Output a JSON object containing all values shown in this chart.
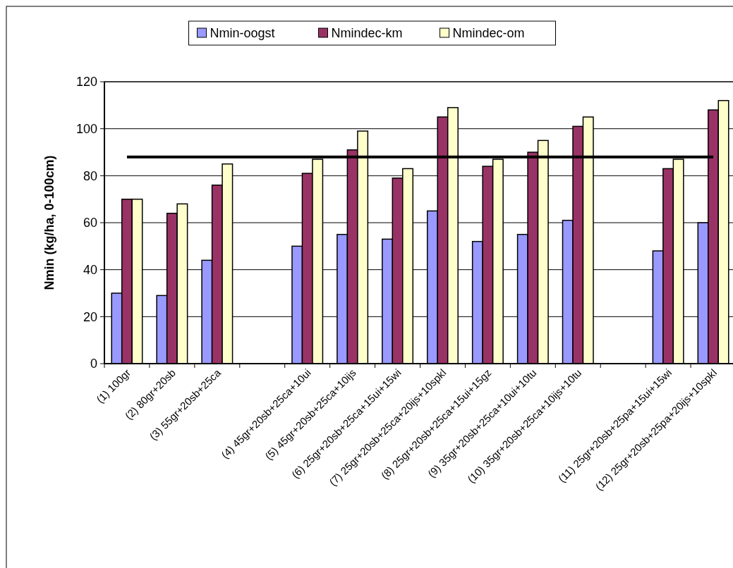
{
  "chart_data": {
    "type": "bar",
    "ylabel": "Nmin (kg/ha, 0-100cm)",
    "categories": [
      "(1) 100gr",
      "(2) 80gr+20sb",
      "(3) 55gr+20sb+25ca",
      null,
      "(4) 45gr+20sb+25ca+10ui",
      "(5) 45gr+20sb+25ca+10ijs",
      "(6) 25gr+20sb+25ca+15ui+15wi",
      "(7) 25gr+20sb+25ca+20ijs+10spkl",
      "(8) 25gr+20sb+25ca+15ui+15gz",
      "(9) 35gr+20sb+25ca+10ui+10tu",
      "(10) 35gr+20sb+25ca+10ijs+10tu",
      null,
      "(11) 25gr+20sb+25pa+15ui+15wi",
      "(12) 25gr+20sb+25pa+20ijs+10spkl"
    ],
    "series": [
      {
        "name": "Nmin-oogst",
        "color": "#9999ff",
        "values": [
          30,
          29,
          44,
          null,
          50,
          55,
          53,
          65,
          52,
          55,
          61,
          null,
          48,
          60
        ]
      },
      {
        "name": "Nmindec-km",
        "color": "#993366",
        "values": [
          70,
          64,
          76,
          null,
          81,
          91,
          79,
          105,
          84,
          90,
          101,
          null,
          83,
          108
        ]
      },
      {
        "name": "Nmindec-om",
        "color": "#ffffcc",
        "values": [
          70,
          68,
          85,
          null,
          87,
          99,
          83,
          109,
          87,
          95,
          105,
          null,
          87,
          112
        ]
      }
    ],
    "ylim": [
      0,
      120
    ],
    "yticks": [
      0,
      20,
      40,
      60,
      80,
      100,
      120
    ],
    "grid": "y",
    "legend": "top",
    "ref_lines": [
      {
        "axis": "y",
        "value": 88,
        "color": "#000000"
      }
    ]
  }
}
